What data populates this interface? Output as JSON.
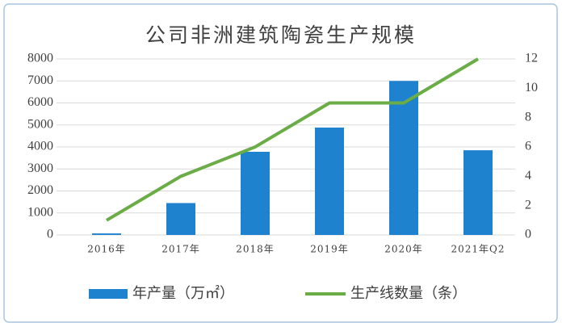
{
  "chart_data": {
    "type": "bar-line",
    "title": "公司非洲建筑陶瓷生产规模",
    "categories": [
      "2016年",
      "2017年",
      "2018年",
      "2019年",
      "2020年",
      "2021年Q2"
    ],
    "series": [
      {
        "name": "年产量（万㎡）",
        "type": "bar",
        "color": "#1f82cf",
        "values": [
          70,
          1450,
          3780,
          4880,
          7000,
          3850
        ]
      },
      {
        "name": "生产线数量（条）",
        "type": "line",
        "axis": "y2",
        "color": "#6aac45",
        "values": [
          1,
          4,
          6,
          9,
          9,
          12
        ]
      }
    ],
    "ylim": [
      0,
      8000
    ],
    "yticks": [
      0,
      1000,
      2000,
      3000,
      4000,
      5000,
      6000,
      7000,
      8000
    ],
    "y2lim": [
      0,
      12
    ],
    "y2ticks": [
      0,
      2,
      4,
      6,
      8,
      10,
      12
    ],
    "grid": true,
    "legend": "bottom"
  }
}
